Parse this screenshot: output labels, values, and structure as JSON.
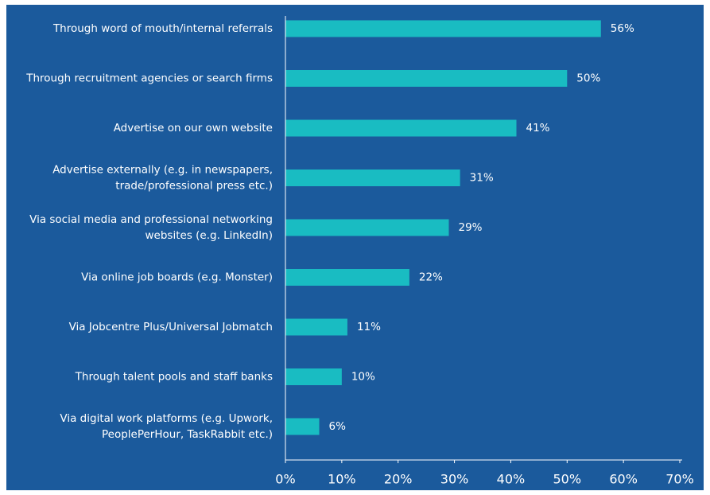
{
  "chart_data": {
    "type": "hbar",
    "categories": [
      [
        "Through word of mouth/internal referrals"
      ],
      [
        "Through recruitment agencies or search firms"
      ],
      [
        "Advertise on our own website"
      ],
      [
        "Advertise externally (e.g. in newspapers,",
        "trade/professional press etc.)"
      ],
      [
        "Via social media and professional networking",
        "websites (e.g. LinkedIn)"
      ],
      [
        "Via online job boards (e.g. Monster)"
      ],
      [
        "Via Jobcentre Plus/Universal Jobmatch"
      ],
      [
        "Through talent pools and staff banks"
      ],
      [
        "Via digital work platforms (e.g. Upwork,",
        "PeoplePerHour, TaskRabbit etc.)"
      ]
    ],
    "values": [
      56,
      50,
      41,
      31,
      29,
      22,
      11,
      10,
      6
    ],
    "value_labels": [
      "56%",
      "50%",
      "41%",
      "31%",
      "29%",
      "22%",
      "11%",
      "10%",
      "6%"
    ],
    "color": "#19bcc2",
    "background": "#1b5a9c",
    "xlim": [
      0,
      70
    ],
    "xticks": [
      {
        "value": 0,
        "label": "0%"
      },
      {
        "value": 10,
        "label": "10%"
      },
      {
        "value": 20,
        "label": "20%"
      },
      {
        "value": 30,
        "label": "30%"
      },
      {
        "value": 40,
        "label": "40%"
      },
      {
        "value": 50,
        "label": "50%"
      },
      {
        "value": 60,
        "label": "60%"
      },
      {
        "value": 70,
        "label": "70%"
      }
    ],
    "grid": false
  }
}
